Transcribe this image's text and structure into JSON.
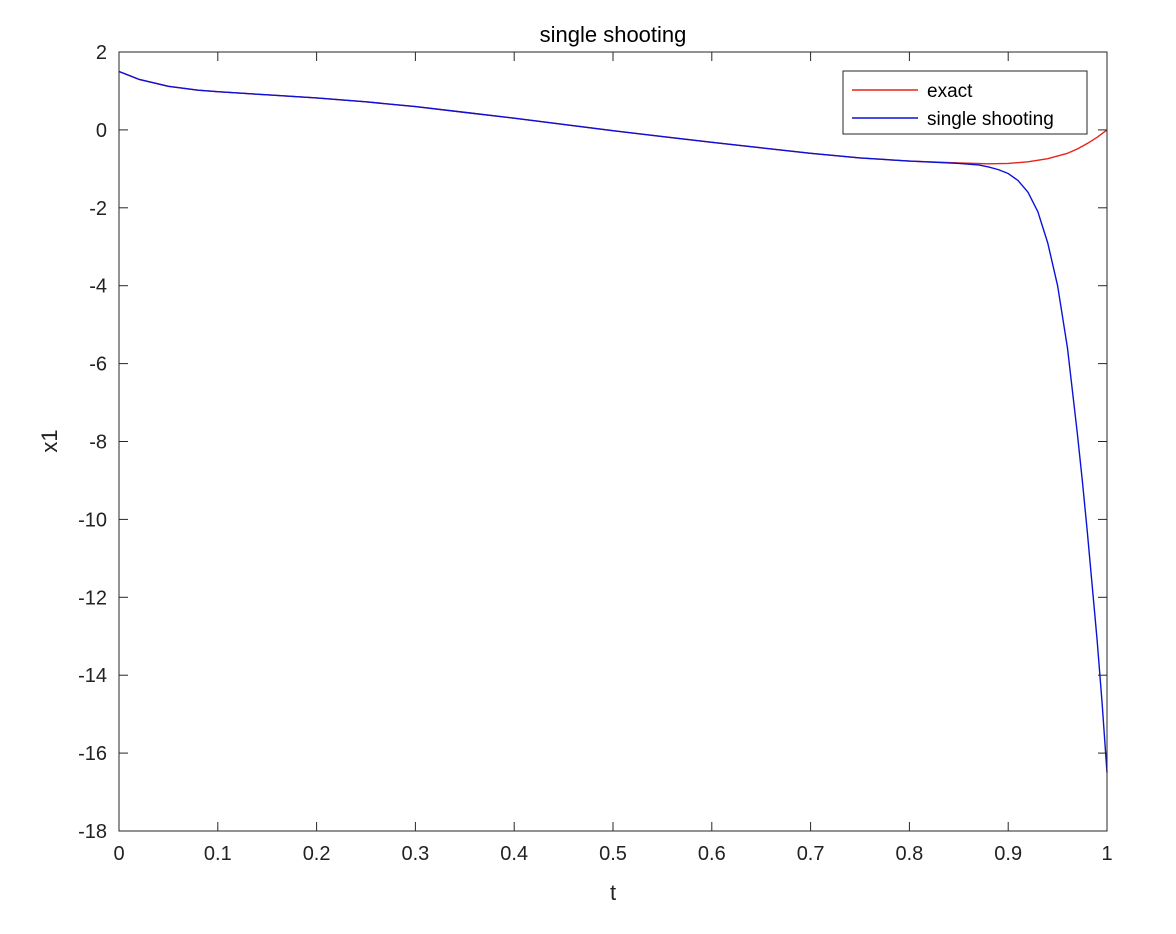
{
  "chart_data": {
    "type": "line",
    "title": "single shooting",
    "xlabel": "t",
    "ylabel": "x1",
    "xlim": [
      0,
      1
    ],
    "ylim": [
      -18,
      2
    ],
    "xticks": [
      0,
      0.1,
      0.2,
      0.3,
      0.4,
      0.5,
      0.6,
      0.7,
      0.8,
      0.9,
      1
    ],
    "xtick_labels": [
      "0",
      "0.1",
      "0.2",
      "0.3",
      "0.4",
      "0.5",
      "0.6",
      "0.7",
      "0.8",
      "0.9",
      "1"
    ],
    "yticks": [
      2,
      0,
      -2,
      -4,
      -6,
      -8,
      -10,
      -12,
      -14,
      -16,
      -18
    ],
    "ytick_labels": [
      "2",
      "0",
      "-2",
      "-4",
      "-6",
      "-8",
      "-10",
      "-12",
      "-14",
      "-16",
      "-18"
    ],
    "grid": false,
    "box": true,
    "legend_position": "top-right",
    "series": [
      {
        "name": "exact",
        "color": "#e8231a",
        "x": [
          0,
          0.02,
          0.05,
          0.08,
          0.1,
          0.15,
          0.2,
          0.25,
          0.3,
          0.35,
          0.4,
          0.45,
          0.5,
          0.55,
          0.6,
          0.65,
          0.7,
          0.75,
          0.8,
          0.85,
          0.88,
          0.9,
          0.92,
          0.94,
          0.96,
          0.97,
          0.98,
          0.99,
          1.0
        ],
        "y": [
          1.5,
          1.3,
          1.12,
          1.02,
          0.98,
          0.9,
          0.82,
          0.72,
          0.6,
          0.45,
          0.3,
          0.14,
          -0.02,
          -0.17,
          -0.32,
          -0.46,
          -0.6,
          -0.72,
          -0.8,
          -0.85,
          -0.87,
          -0.86,
          -0.82,
          -0.74,
          -0.6,
          -0.49,
          -0.35,
          -0.19,
          0.0
        ]
      },
      {
        "name": "single shooting",
        "color": "#0a12d8",
        "x": [
          0,
          0.02,
          0.05,
          0.08,
          0.1,
          0.15,
          0.2,
          0.25,
          0.3,
          0.35,
          0.4,
          0.45,
          0.5,
          0.55,
          0.6,
          0.65,
          0.7,
          0.75,
          0.8,
          0.85,
          0.87,
          0.88,
          0.89,
          0.9,
          0.91,
          0.92,
          0.93,
          0.94,
          0.95,
          0.96,
          0.97,
          0.975,
          0.98,
          0.985,
          0.99,
          0.995,
          1.0
        ],
        "y": [
          1.5,
          1.3,
          1.12,
          1.02,
          0.98,
          0.9,
          0.82,
          0.72,
          0.6,
          0.45,
          0.3,
          0.14,
          -0.02,
          -0.17,
          -0.32,
          -0.46,
          -0.6,
          -0.72,
          -0.8,
          -0.86,
          -0.9,
          -0.95,
          -1.02,
          -1.12,
          -1.3,
          -1.6,
          -2.1,
          -2.9,
          -4.0,
          -5.6,
          -7.8,
          -9.0,
          -10.3,
          -11.7,
          -13.1,
          -14.7,
          -16.5
        ]
      }
    ]
  }
}
